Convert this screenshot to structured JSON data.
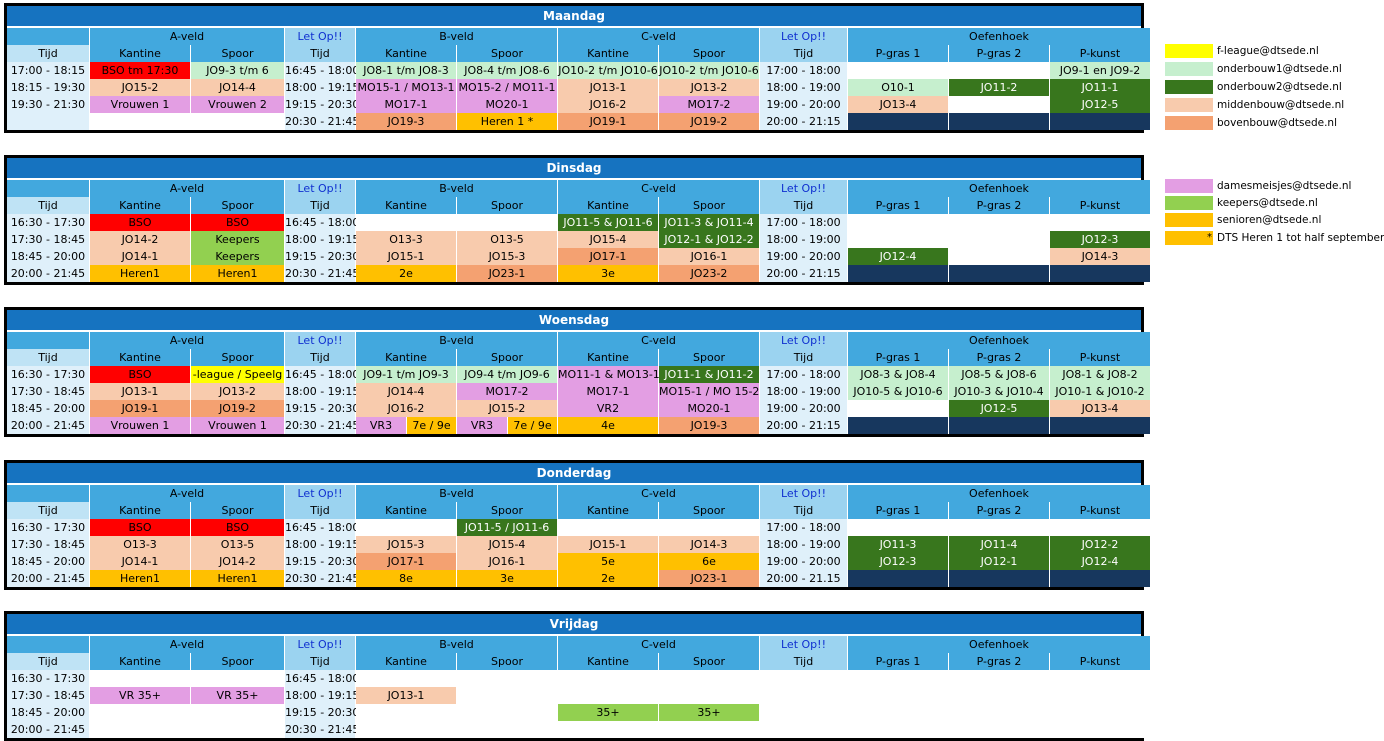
{
  "headers": {
    "a_veld": "A-veld",
    "b_veld": "B-veld",
    "c_veld": "C-veld",
    "oefenhoek": "Oefenhoek",
    "letop": "Let Op!!",
    "tijd": "Tijd",
    "kantine": "Kantine",
    "spoor": "Spoor",
    "pgras1": "P-gras 1",
    "pgras2": "P-gras 2",
    "pkunst": "P-kunst"
  },
  "colors": {
    "header_blue": "#1673c0",
    "sub_header": "#42a8de",
    "bso": "#ff0000",
    "f_league": "#ffff00",
    "onderbouw1": "#c6efce",
    "onderbouw2": "#38761d",
    "middenbouw": "#f8cbad",
    "bovenbouw": "#f4a171",
    "dames": "#e39ee3",
    "keepers": "#92d050",
    "senioren": "#ffc000",
    "navy": "#17375e"
  },
  "legend": [
    {
      "color": "f_league",
      "label": "f-league@dtsede.nl"
    },
    {
      "color": "onderbouw1",
      "label": "onderbouw1@dtsede.nl"
    },
    {
      "color": "onderbouw2",
      "label": "onderbouw2@dtsede.nl"
    },
    {
      "color": "middenbouw",
      "label": "middenbouw@dtsede.nl"
    },
    {
      "color": "bovenbouw",
      "label": "bovenbouw@dtsede.nl"
    },
    {
      "color": "dames",
      "label": "damesmeisjes@dtsede.nl"
    },
    {
      "color": "keepers",
      "label": "keepers@dtsede.nl"
    },
    {
      "color": "senioren",
      "label": "senioren@dtsede.nl"
    },
    {
      "color": "senioren",
      "label": "DTS Heren 1 tot half september",
      "marker": "*"
    }
  ],
  "days": [
    {
      "name": "Maandag",
      "rows": [
        {
          "t1": "17:00 - 18:15",
          "ak": [
            "BSO tm 17:30",
            "bso"
          ],
          "as": [
            "JO9-3 t/m 6",
            "lg"
          ],
          "t2": "16:45 - 18:00",
          "bk": [
            "JO8-1 t/m JO8-3",
            "lg"
          ],
          "bs": [
            "JO8-4 t/m JO8-6",
            "lg"
          ],
          "ck": [
            "JO10-2 t/m JO10-6",
            "lg"
          ],
          "cs": [
            "JO10-2 t/m JO10-6",
            "lg"
          ],
          "t3": "17:00 - 18:00",
          "p1": [
            "",
            ""
          ],
          "p2": [
            "",
            ""
          ],
          "pk": [
            "JO9-1 en JO9-2",
            "lg"
          ]
        },
        {
          "t1": "18:15 - 19:30",
          "ak": [
            "JO15-2",
            "peach"
          ],
          "as": [
            "JO14-4",
            "peach"
          ],
          "t2": "18:00 - 19:15",
          "bk": [
            "MO15-1 / MO13-1",
            "pink"
          ],
          "bs": [
            "MO15-2 / MO11-1",
            "pink"
          ],
          "ck": [
            "JO13-1",
            "peach"
          ],
          "cs": [
            "JO13-2",
            "peach"
          ],
          "t3": "18:00 - 19:00",
          "p1": [
            "O10-1",
            "lg"
          ],
          "p2": [
            "JO11-2",
            "dg"
          ],
          "pk": [
            "JO11-1",
            "dg"
          ]
        },
        {
          "t1": "19:30 - 21:30",
          "ak": [
            "Vrouwen 1",
            "pink"
          ],
          "as": [
            "Vrouwen 2",
            "pink"
          ],
          "t2": "19:15 - 20:30",
          "bk": [
            "MO17-1",
            "pink"
          ],
          "bs": [
            "MO20-1",
            "pink"
          ],
          "ck": [
            "JO16-2",
            "peach"
          ],
          "cs": [
            "MO17-2",
            "pink"
          ],
          "t3": "19:00 - 20:00",
          "p1": [
            "JO13-4",
            "peach"
          ],
          "p2": [
            "",
            ""
          ],
          "pk": [
            "JO12-5",
            "dg"
          ]
        },
        {
          "t1": "",
          "ak": [
            "",
            "wt"
          ],
          "as": [
            "",
            "wt"
          ],
          "t2": "20:30 - 21:45",
          "bk": [
            "JO19-3",
            "orange"
          ],
          "bs": [
            "Heren 1 *",
            "sen"
          ],
          "ck": [
            "JO19-1",
            "orange"
          ],
          "cs": [
            "JO19-2",
            "orange"
          ],
          "t3": "20:00 - 21:15",
          "p1": [
            "",
            "navy"
          ],
          "p2": [
            "",
            "navy"
          ],
          "pk": [
            "",
            "navy"
          ]
        }
      ]
    },
    {
      "name": "Dinsdag",
      "rows": [
        {
          "t1": "16:30 - 17:30",
          "ak": [
            "BSO",
            "bso"
          ],
          "as": [
            "BSO",
            "bso"
          ],
          "t2": "16:45 - 18:00",
          "bk": [
            "",
            ""
          ],
          "bs": [
            "",
            ""
          ],
          "ck": [
            "JO11-5 & JO11-6",
            "dg"
          ],
          "cs": [
            "JO11-3 & JO11-4",
            "dg"
          ],
          "t3": "17:00 - 18:00",
          "p1": [
            "",
            ""
          ],
          "p2": [
            "",
            ""
          ],
          "pk": [
            "",
            ""
          ]
        },
        {
          "t1": "17:30 - 18:45",
          "ak": [
            "JO14-2",
            "peach"
          ],
          "as": [
            "Keepers",
            "keep"
          ],
          "t2": "18:00 - 19:15",
          "bk": [
            "O13-3",
            "peach"
          ],
          "bs": [
            "O13-5",
            "peach"
          ],
          "ck": [
            "JO15-4",
            "peach"
          ],
          "cs": [
            "JO12-1 & JO12-2",
            "dg"
          ],
          "t3": "18:00 - 19:00",
          "p1": [
            "",
            ""
          ],
          "p2": [
            "",
            ""
          ],
          "pk": [
            "JO12-3",
            "dg"
          ]
        },
        {
          "t1": "18:45 - 20:00",
          "ak": [
            "JO14-1",
            "peach"
          ],
          "as": [
            "Keepers",
            "keep"
          ],
          "t2": "19:15 - 20:30",
          "bk": [
            "JO15-1",
            "peach"
          ],
          "bs": [
            "JO15-3",
            "peach"
          ],
          "ck": [
            "JO17-1",
            "orange"
          ],
          "cs": [
            "JO16-1",
            "peach"
          ],
          "t3": "19:00 - 20:00",
          "p1": [
            "JO12-4",
            "dg"
          ],
          "p2": [
            "",
            ""
          ],
          "pk": [
            "JO14-3",
            "peach"
          ]
        },
        {
          "t1": "20:00 - 21:45",
          "ak": [
            "Heren1",
            "sen"
          ],
          "as": [
            "Heren1",
            "sen"
          ],
          "t2": "20:30 - 21:45",
          "bk": [
            "2e",
            "sen"
          ],
          "bs": [
            "JO23-1",
            "orange"
          ],
          "ck": [
            "3e",
            "sen"
          ],
          "cs": [
            "JO23-2",
            "orange"
          ],
          "t3": "20:00 - 21:15",
          "p1": [
            "",
            "navy"
          ],
          "p2": [
            "",
            "navy"
          ],
          "pk": [
            "",
            "navy"
          ]
        }
      ]
    },
    {
      "name": "Woensdag",
      "rows": [
        {
          "t1": "16:30 - 17:30",
          "ak": [
            "BSO",
            "bso"
          ],
          "as": [
            "-league / Speelg",
            "yellow"
          ],
          "t2": "16:45 - 18:00",
          "bk": [
            "JO9-1 t/m JO9-3",
            "lg"
          ],
          "bs": [
            "JO9-4 t/m JO9-6",
            "lg"
          ],
          "ck": [
            "MO11-1 & MO13-1",
            "pink"
          ],
          "cs": [
            "JO11-1 & JO11-2",
            "dg"
          ],
          "t3": "17:00 - 18:00",
          "p1": [
            "JO8-3 & JO8-4",
            "lg"
          ],
          "p2": [
            "JO8-5 & JO8-6",
            "lg"
          ],
          "pk": [
            "JO8-1 & JO8-2",
            "lg"
          ]
        },
        {
          "t1": "17:30 - 18:45",
          "ak": [
            "JO13-1",
            "peach"
          ],
          "as": [
            "JO13-2",
            "peach"
          ],
          "t2": "18:00 - 19:15",
          "bk": [
            "JO14-4",
            "peach"
          ],
          "bs": [
            "MO17-2",
            "pink"
          ],
          "ck": [
            "MO17-1",
            "pink"
          ],
          "cs": [
            "MO15-1 / MO 15-2",
            "pink"
          ],
          "t3": "18:00 - 19:00",
          "p1": [
            "JO10-5 & JO10-6",
            "lg"
          ],
          "p2": [
            "JO10-3 & JO10-4",
            "lg"
          ],
          "pk": [
            "JO10-1 & JO10-2",
            "lg"
          ]
        },
        {
          "t1": "18:45 - 20:00",
          "ak": [
            "JO19-1",
            "orange"
          ],
          "as": [
            "JO19-2",
            "orange"
          ],
          "t2": "19:15 - 20:30",
          "bk": [
            "JO16-2",
            "peach"
          ],
          "bs": [
            "JO15-2",
            "peach"
          ],
          "ck": [
            "VR2",
            "pink"
          ],
          "cs": [
            "MO20-1",
            "pink"
          ],
          "t3": "19:00 - 20:00",
          "p1": [
            "",
            ""
          ],
          "p2": [
            "JO12-5",
            "dg"
          ],
          "pk": [
            "JO13-4",
            "peach"
          ]
        },
        {
          "t1": "20:00 - 21:45",
          "ak": [
            "Vrouwen 1",
            "pink"
          ],
          "as": [
            "Vrouwen 1",
            "pink"
          ],
          "t2": "20:30 - 21:45",
          "bsplit": [
            [
              "VR3",
              "pink"
            ],
            [
              "7e / 9e",
              "sen"
            ]
          ],
          "csplit": [
            [
              "VR3",
              "pink"
            ],
            [
              "7e / 9e",
              "sen"
            ]
          ],
          "ck": [
            "4e",
            "sen"
          ],
          "cs": [
            "JO19-3",
            "orange"
          ],
          "t3": "20:00 - 21:15",
          "p1": [
            "",
            "navy"
          ],
          "p2": [
            "",
            "navy"
          ],
          "pk": [
            "",
            "navy"
          ]
        }
      ]
    },
    {
      "name": "Donderdag",
      "rows": [
        {
          "t1": "16:30 - 17:30",
          "ak": [
            "BSO",
            "bso"
          ],
          "as": [
            "BSO",
            "bso"
          ],
          "t2": "16:45 - 18:00",
          "bk": [
            "",
            ""
          ],
          "bs": [
            "JO11-5 / JO11-6",
            "dg"
          ],
          "ck": [
            "",
            ""
          ],
          "cs": [
            "",
            ""
          ],
          "t3": "17:00 - 18:00",
          "p1": [
            "",
            ""
          ],
          "p2": [
            "",
            ""
          ],
          "pk": [
            "",
            ""
          ]
        },
        {
          "t1": "17:30 - 18:45",
          "ak": [
            "O13-3",
            "peach"
          ],
          "as": [
            "O13-5",
            "peach"
          ],
          "t2": "18:00 - 19:15",
          "bk": [
            "JO15-3",
            "peach"
          ],
          "bs": [
            "JO15-4",
            "peach"
          ],
          "ck": [
            "JO15-1",
            "peach"
          ],
          "cs": [
            "JO14-3",
            "peach"
          ],
          "t3": "18:00 - 19:00",
          "p1": [
            "JO11-3",
            "dg"
          ],
          "p2": [
            "JO11-4",
            "dg"
          ],
          "pk": [
            "JO12-2",
            "dg"
          ]
        },
        {
          "t1": "18:45 - 20:00",
          "ak": [
            "JO14-1",
            "peach"
          ],
          "as": [
            "JO14-2",
            "peach"
          ],
          "t2": "19:15 - 20:30",
          "bk": [
            "JO17-1",
            "orange"
          ],
          "bs": [
            "JO16-1",
            "peach"
          ],
          "ck": [
            "5e",
            "sen"
          ],
          "cs": [
            "6e",
            "sen"
          ],
          "t3": "19:00 - 20:00",
          "p1": [
            "JO12-3",
            "dg"
          ],
          "p2": [
            "JO12-1",
            "dg"
          ],
          "pk": [
            "JO12-4",
            "dg"
          ]
        },
        {
          "t1": "20:00 - 21:45",
          "ak": [
            "Heren1",
            "sen"
          ],
          "as": [
            "Heren1",
            "sen"
          ],
          "t2": "20:30 - 21:45",
          "bk": [
            "8e",
            "sen"
          ],
          "bs": [
            "3e",
            "sen"
          ],
          "ck": [
            "2e",
            "sen"
          ],
          "cs": [
            "JO23-1",
            "orange"
          ],
          "t3": "20:00 - 21.15",
          "p1": [
            "",
            "navy"
          ],
          "p2": [
            "",
            "navy"
          ],
          "pk": [
            "",
            "navy"
          ]
        }
      ]
    },
    {
      "name": "Vrijdag",
      "rows": [
        {
          "t1": "16:30 - 17:30",
          "ak": [
            "",
            ""
          ],
          "as": [
            "",
            ""
          ],
          "t2": "16:45 - 18:00",
          "bk": [
            "",
            ""
          ],
          "bs": [
            "",
            ""
          ],
          "ck": [
            "",
            ""
          ],
          "cs": [
            "",
            ""
          ],
          "t3": "",
          "p1": [
            "",
            ""
          ],
          "p2": [
            "",
            ""
          ],
          "pk": [
            "",
            ""
          ]
        },
        {
          "t1": "17:30 - 18:45",
          "ak": [
            "VR 35+",
            "pink"
          ],
          "as": [
            "VR 35+",
            "pink"
          ],
          "t2": "18:00 - 19:15",
          "bk": [
            "JO13-1",
            "peach"
          ],
          "bs": [
            "",
            ""
          ],
          "ck": [
            "",
            ""
          ],
          "cs": [
            "",
            ""
          ],
          "t3": "",
          "p1": [
            "",
            ""
          ],
          "p2": [
            "",
            ""
          ],
          "pk": [
            "",
            ""
          ]
        },
        {
          "t1": "18:45 - 20:00",
          "ak": [
            "",
            ""
          ],
          "as": [
            "",
            ""
          ],
          "t2": "19:15 - 20:30",
          "bk": [
            "",
            ""
          ],
          "bs": [
            "",
            ""
          ],
          "ck": [
            "35+",
            "keep"
          ],
          "cs": [
            "35+",
            "keep"
          ],
          "t3": "",
          "p1": [
            "",
            ""
          ],
          "p2": [
            "",
            ""
          ],
          "pk": [
            "",
            ""
          ]
        },
        {
          "t1": "20:00 - 21:45",
          "ak": [
            "",
            ""
          ],
          "as": [
            "",
            ""
          ],
          "t2": "20:30 - 21:45",
          "bk": [
            "",
            ""
          ],
          "bs": [
            "",
            ""
          ],
          "ck": [
            "",
            ""
          ],
          "cs": [
            "",
            ""
          ],
          "t3": "",
          "p1": [
            "",
            ""
          ],
          "p2": [
            "",
            ""
          ],
          "pk": [
            "",
            ""
          ]
        }
      ]
    }
  ]
}
